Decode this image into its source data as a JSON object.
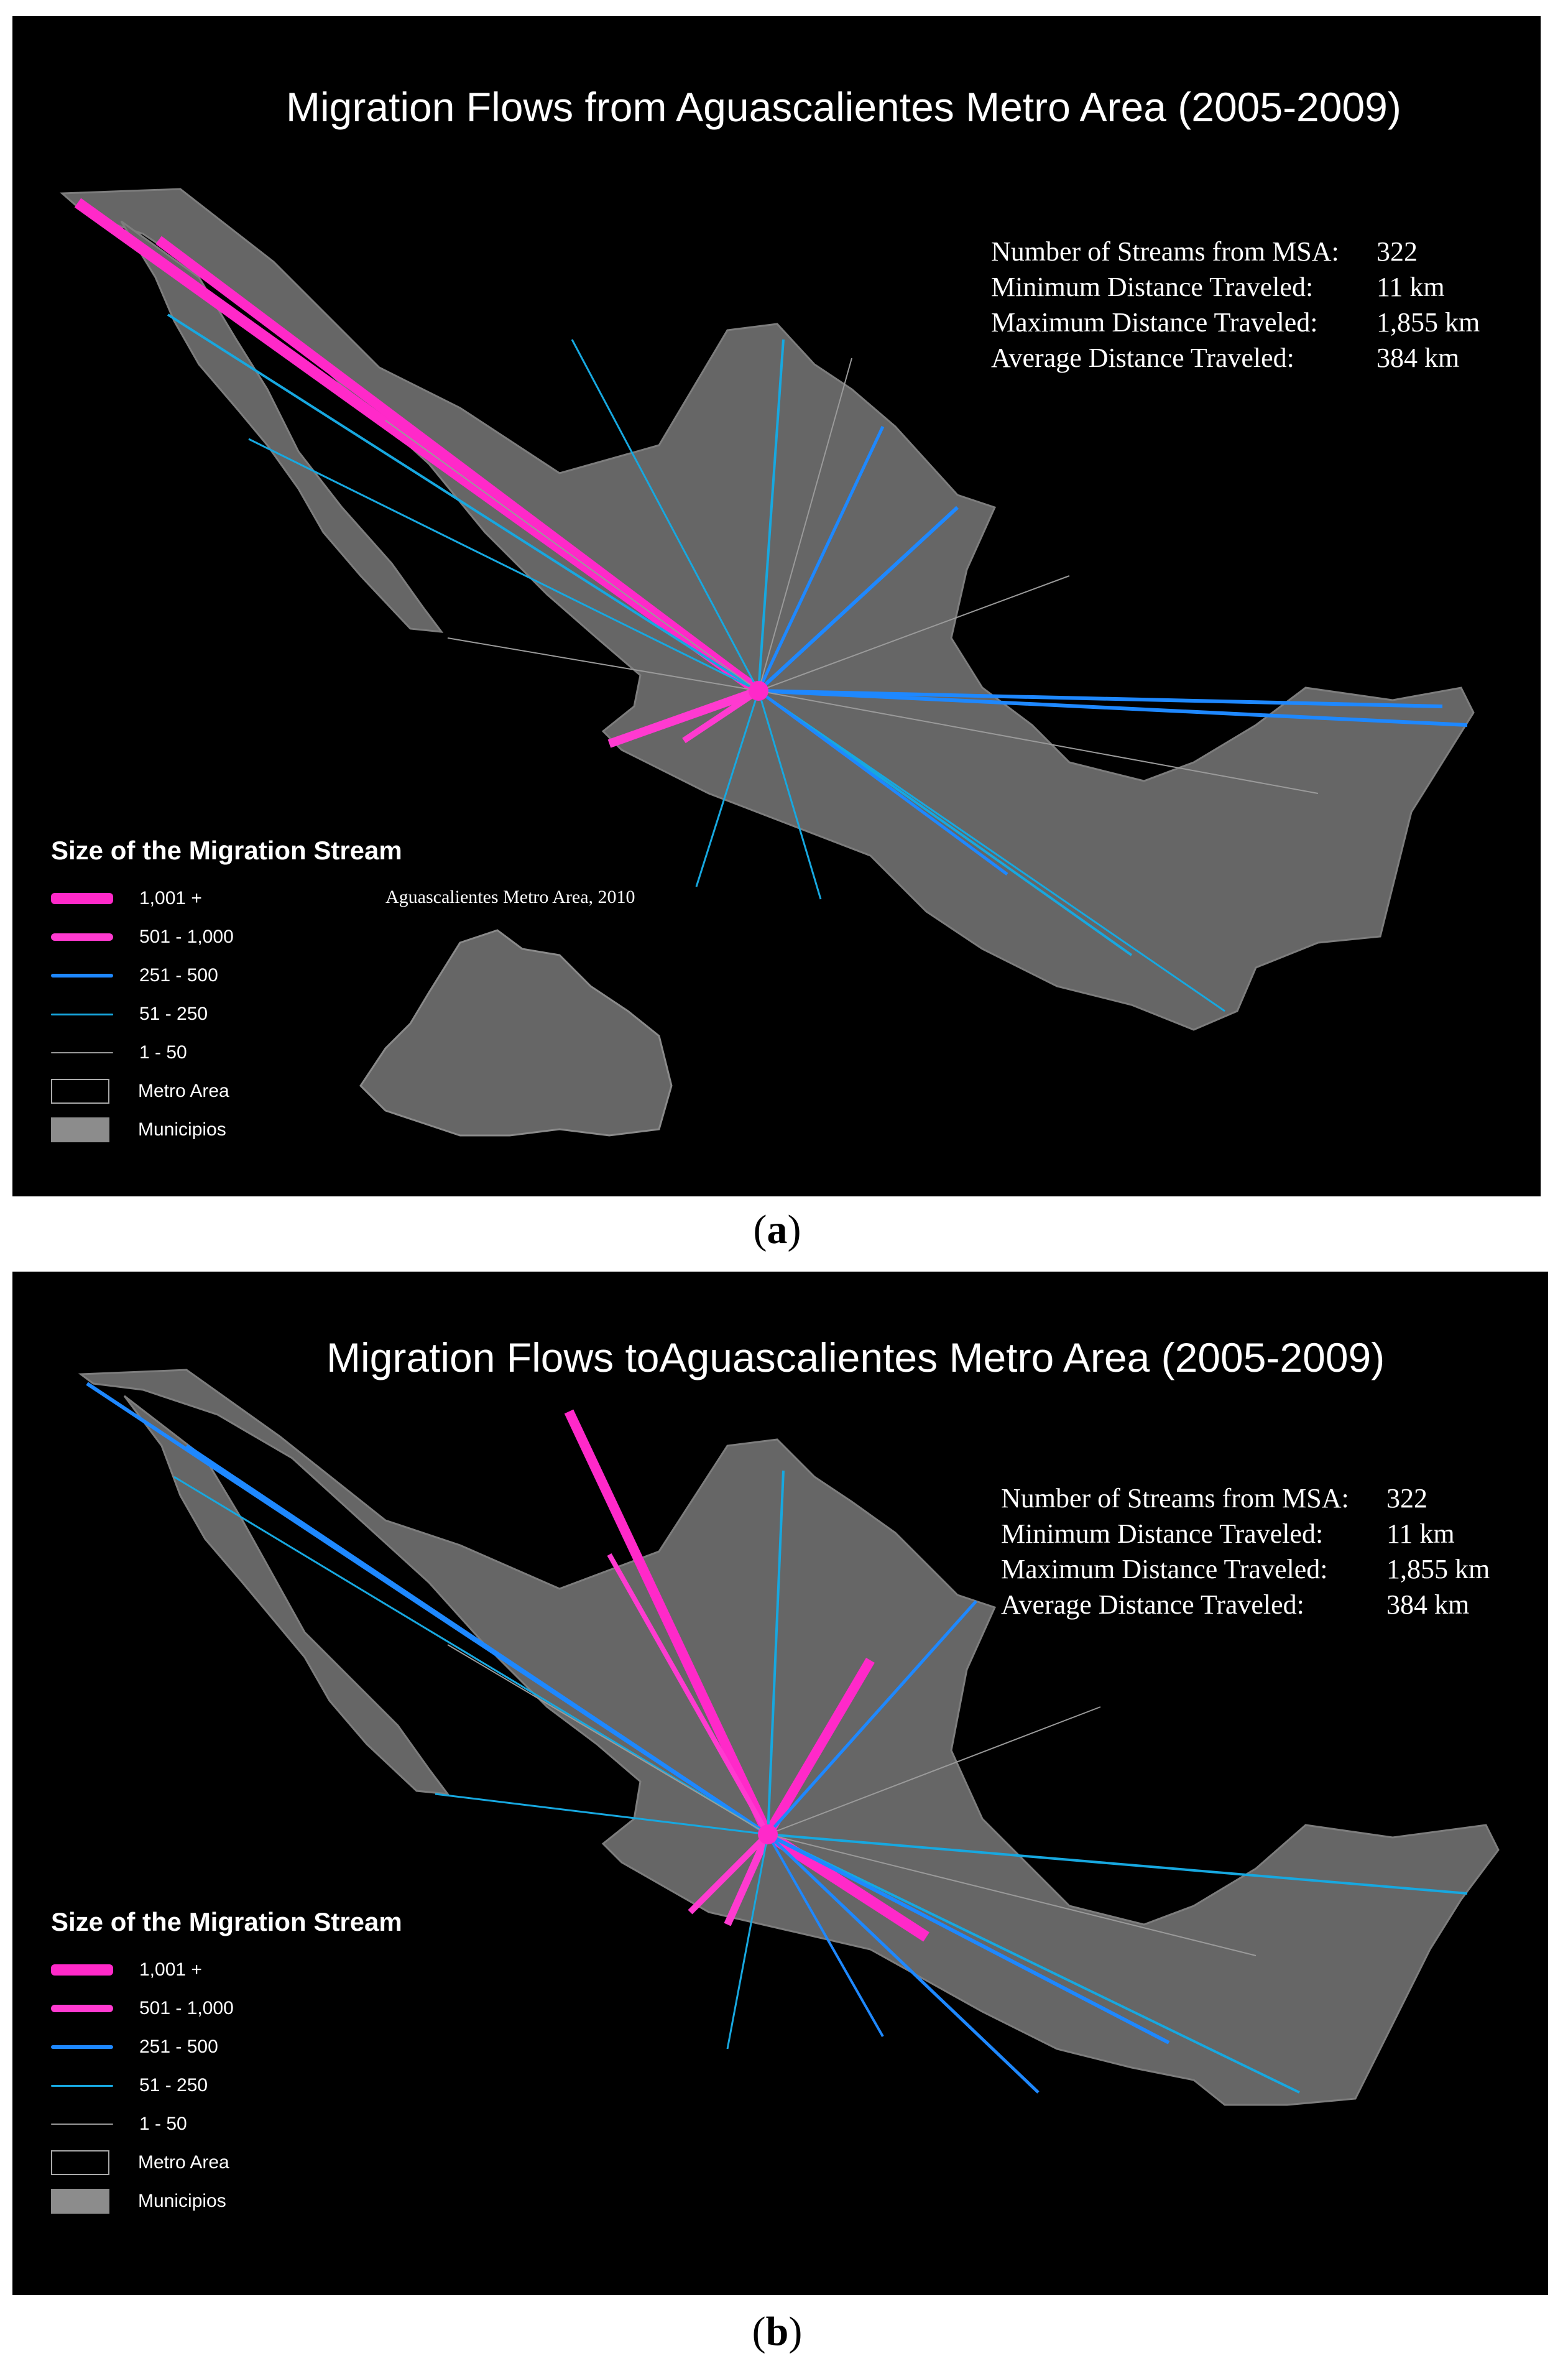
{
  "colors": {
    "background": "#000000",
    "land": "#666666",
    "borders": "#808080",
    "flow_1001_plus": "#ff29c9",
    "flow_501_1000": "#ff3ad0",
    "flow_251_500": "#1e88ff",
    "flow_51_250": "#17a8e0",
    "flow_1_50": "#9a9a9a",
    "metro_area": "#000000",
    "municipios": "#8c8c8c"
  },
  "legend": {
    "title": "Size of the Migration Stream",
    "items": [
      {
        "label": "1,001 +",
        "kind": "line",
        "color": "#ff29c9",
        "weight": 5
      },
      {
        "label": "501 - 1,000",
        "kind": "line",
        "color": "#ff3ad0",
        "weight": 4
      },
      {
        "label": "251 - 500",
        "kind": "line",
        "color": "#1e88ff",
        "weight": 3
      },
      {
        "label": "51 - 250",
        "kind": "line",
        "color": "#17a8e0",
        "weight": 2
      },
      {
        "label": "1 - 50",
        "kind": "line",
        "color": "#9a9a9a",
        "weight": 1
      },
      {
        "label": "Metro Area",
        "kind": "box",
        "color": "#000000"
      },
      {
        "label": "Municipios",
        "kind": "box",
        "color": "#8c8c8c"
      }
    ]
  },
  "panels": [
    {
      "id": "a",
      "label_open": "(",
      "label": "a",
      "label_close": ")",
      "title": "Migration Flows from Aguascalientes Metro Area (2005-2009)",
      "inset_label": "Aguascalientes Metro Area, 2010",
      "stats": [
        {
          "label": "Number of Streams from MSA:",
          "value": "322"
        },
        {
          "label": "Minimum Distance Traveled:",
          "value": "11 km"
        },
        {
          "label": "Maximum Distance Traveled:",
          "value": "1,855 km"
        },
        {
          "label": "Average Distance Traveled:",
          "value": "384 km"
        }
      ]
    },
    {
      "id": "b",
      "label_open": "(",
      "label": "b",
      "label_close": ")",
      "title": "Migration Flows toAguascalientes Metro Area (2005-2009)",
      "stats": [
        {
          "label": "Number of Streams from MSA:",
          "value": "322"
        },
        {
          "label": "Minimum Distance Traveled:",
          "value": "11 km"
        },
        {
          "label": "Maximum Distance Traveled:",
          "value": "1,855 km"
        },
        {
          "label": "Average Distance Traveled:",
          "value": "384 km"
        }
      ]
    }
  ]
}
